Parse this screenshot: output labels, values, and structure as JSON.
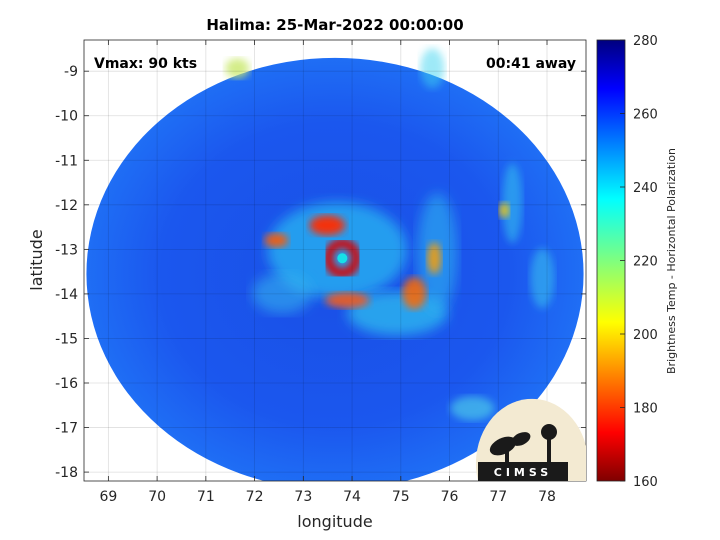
{
  "title": "Halima: 25-Mar-2022 00:00:00",
  "annotations": {
    "vmax": "Vmax: 90 kts",
    "time_away": "00:41 away"
  },
  "axes": {
    "xlabel": "longitude",
    "ylabel": "latitude",
    "xlim": [
      68.5,
      78.8
    ],
    "ylim": [
      -18.2,
      -8.3
    ],
    "xticks": [
      69,
      70,
      71,
      72,
      73,
      74,
      75,
      76,
      77,
      78
    ],
    "yticks": [
      -9,
      -10,
      -11,
      -12,
      -13,
      -14,
      -15,
      -16,
      -17,
      -18
    ],
    "grid": true
  },
  "colorbar": {
    "label": "Brightness Temp - Horizontal Polarization",
    "min": 160,
    "max": 280,
    "ticks": [
      280,
      260,
      240,
      220,
      200,
      180,
      160
    ],
    "colormap": "jet"
  },
  "storm": {
    "center_lon": 73.8,
    "center_lat": -13.2,
    "swath_center_lon": 73.65,
    "swath_center_lat": -13.55,
    "swath_radius_lon": 5.1,
    "swath_radius_lat": 4.85
  },
  "logo": {
    "text": "CIMSS"
  }
}
